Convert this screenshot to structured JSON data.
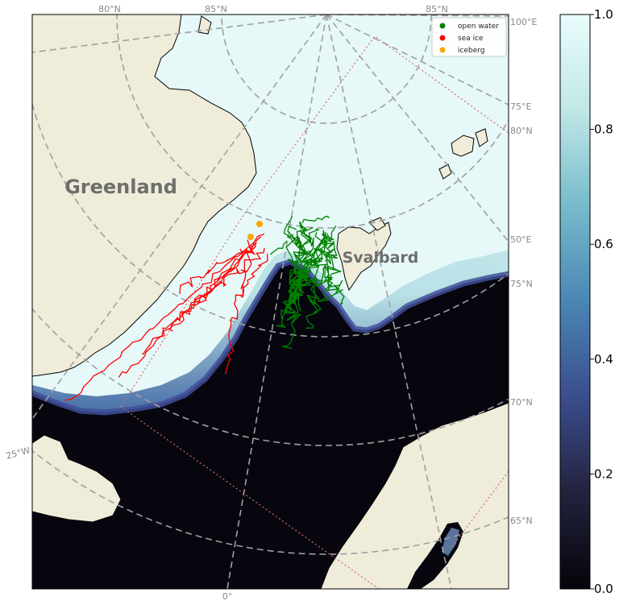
{
  "map": {
    "place_labels": {
      "greenland": "Greenland",
      "svalbard": "Svalbard"
    },
    "graticule_labels": {
      "top_80n": "80°N",
      "top_85n_left": "85°N",
      "top_85n_right": "85°N",
      "right_100e": "100°E",
      "right_75e": "75°E",
      "right_80n": "80°N",
      "right_50e": "50°E",
      "right_75n": "75°N",
      "right_70n": "70°N",
      "right_65n": "65°N",
      "left_25w": "25°W",
      "bottom_0": "0°"
    },
    "colors": {
      "land": "#efecd9",
      "ocean_open": "#07060f",
      "ice_high": "#e4f7f7",
      "gridlines": "#a0a0a0",
      "ice_edge_boundary": "#d56b6b"
    }
  },
  "legend": {
    "items": [
      {
        "label": "open water",
        "color": "#008000"
      },
      {
        "label": "sea ice",
        "color": "#ff0000"
      },
      {
        "label": "iceberg",
        "color": "#ffa500"
      }
    ]
  },
  "colorbar": {
    "colormap": "ice",
    "ticks": [
      "0.0",
      "0.2",
      "0.4",
      "0.6",
      "0.8",
      "1.0"
    ],
    "colors": [
      "#04040a",
      "#23233f",
      "#3a4c8c",
      "#4a86b5",
      "#78bccc",
      "#bfe6e6",
      "#eafcfd"
    ]
  },
  "drifters": {
    "icebergs": [
      {
        "lon": -7,
        "lat": 78.9
      },
      {
        "lon": -8,
        "lat": 78.7
      }
    ]
  }
}
